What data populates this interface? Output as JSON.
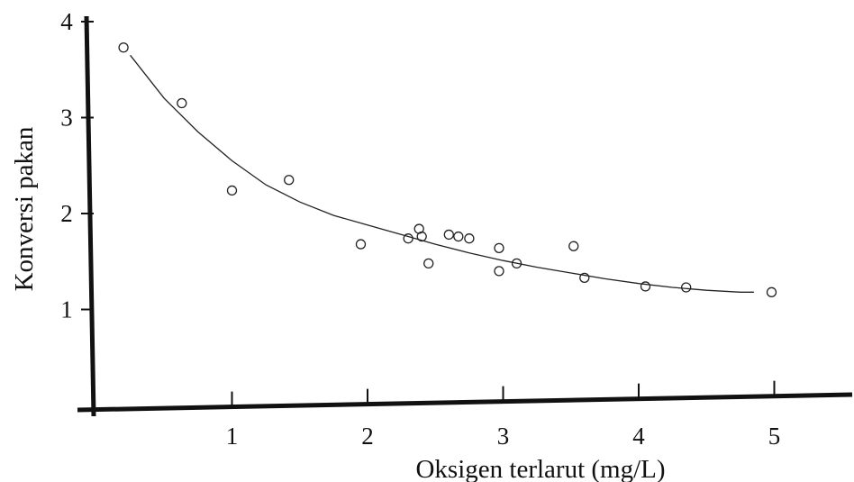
{
  "chart_data": {
    "type": "scatter",
    "title": "",
    "xlabel": "Oksigen terlarut (mg/L)",
    "ylabel": "Konversi pakan",
    "xlim": [
      0,
      5
    ],
    "ylim": [
      0,
      4
    ],
    "x_ticks": [
      "1",
      "2",
      "3",
      "4",
      "5"
    ],
    "y_ticks": [
      "1",
      "2",
      "3",
      "4"
    ],
    "grid": false,
    "legend": "none",
    "colors": {
      "axis": "#111111",
      "marker": "#222222",
      "curve": "#222222"
    },
    "series": [
      {
        "kind": "points",
        "marker": "open-circle",
        "points": [
          {
            "x": 0.2,
            "y": 3.73
          },
          {
            "x": 0.63,
            "y": 3.15
          },
          {
            "x": 1.0,
            "y": 2.24
          },
          {
            "x": 1.42,
            "y": 2.35
          },
          {
            "x": 1.95,
            "y": 1.68
          },
          {
            "x": 2.3,
            "y": 1.74
          },
          {
            "x": 2.38,
            "y": 1.84
          },
          {
            "x": 2.4,
            "y": 1.76
          },
          {
            "x": 2.45,
            "y": 1.48
          },
          {
            "x": 2.6,
            "y": 1.78
          },
          {
            "x": 2.67,
            "y": 1.76
          },
          {
            "x": 2.75,
            "y": 1.74
          },
          {
            "x": 2.97,
            "y": 1.64
          },
          {
            "x": 2.97,
            "y": 1.4
          },
          {
            "x": 3.1,
            "y": 1.48
          },
          {
            "x": 3.52,
            "y": 1.66
          },
          {
            "x": 3.6,
            "y": 1.33
          },
          {
            "x": 4.05,
            "y": 1.24
          },
          {
            "x": 4.35,
            "y": 1.23
          },
          {
            "x": 4.98,
            "y": 1.18
          }
        ]
      },
      {
        "kind": "fit-curve",
        "points": [
          {
            "x": 0.25,
            "y": 3.65
          },
          {
            "x": 0.5,
            "y": 3.2
          },
          {
            "x": 0.75,
            "y": 2.85
          },
          {
            "x": 1.0,
            "y": 2.55
          },
          {
            "x": 1.25,
            "y": 2.3
          },
          {
            "x": 1.5,
            "y": 2.12
          },
          {
            "x": 1.75,
            "y": 1.98
          },
          {
            "x": 2.0,
            "y": 1.88
          },
          {
            "x": 2.25,
            "y": 1.78
          },
          {
            "x": 2.5,
            "y": 1.68
          },
          {
            "x": 2.75,
            "y": 1.59
          },
          {
            "x": 3.0,
            "y": 1.51
          },
          {
            "x": 3.25,
            "y": 1.44
          },
          {
            "x": 3.5,
            "y": 1.38
          },
          {
            "x": 3.75,
            "y": 1.32
          },
          {
            "x": 4.0,
            "y": 1.27
          },
          {
            "x": 4.25,
            "y": 1.23
          },
          {
            "x": 4.5,
            "y": 1.2
          },
          {
            "x": 4.75,
            "y": 1.18
          },
          {
            "x": 4.85,
            "y": 1.18
          }
        ]
      }
    ]
  }
}
